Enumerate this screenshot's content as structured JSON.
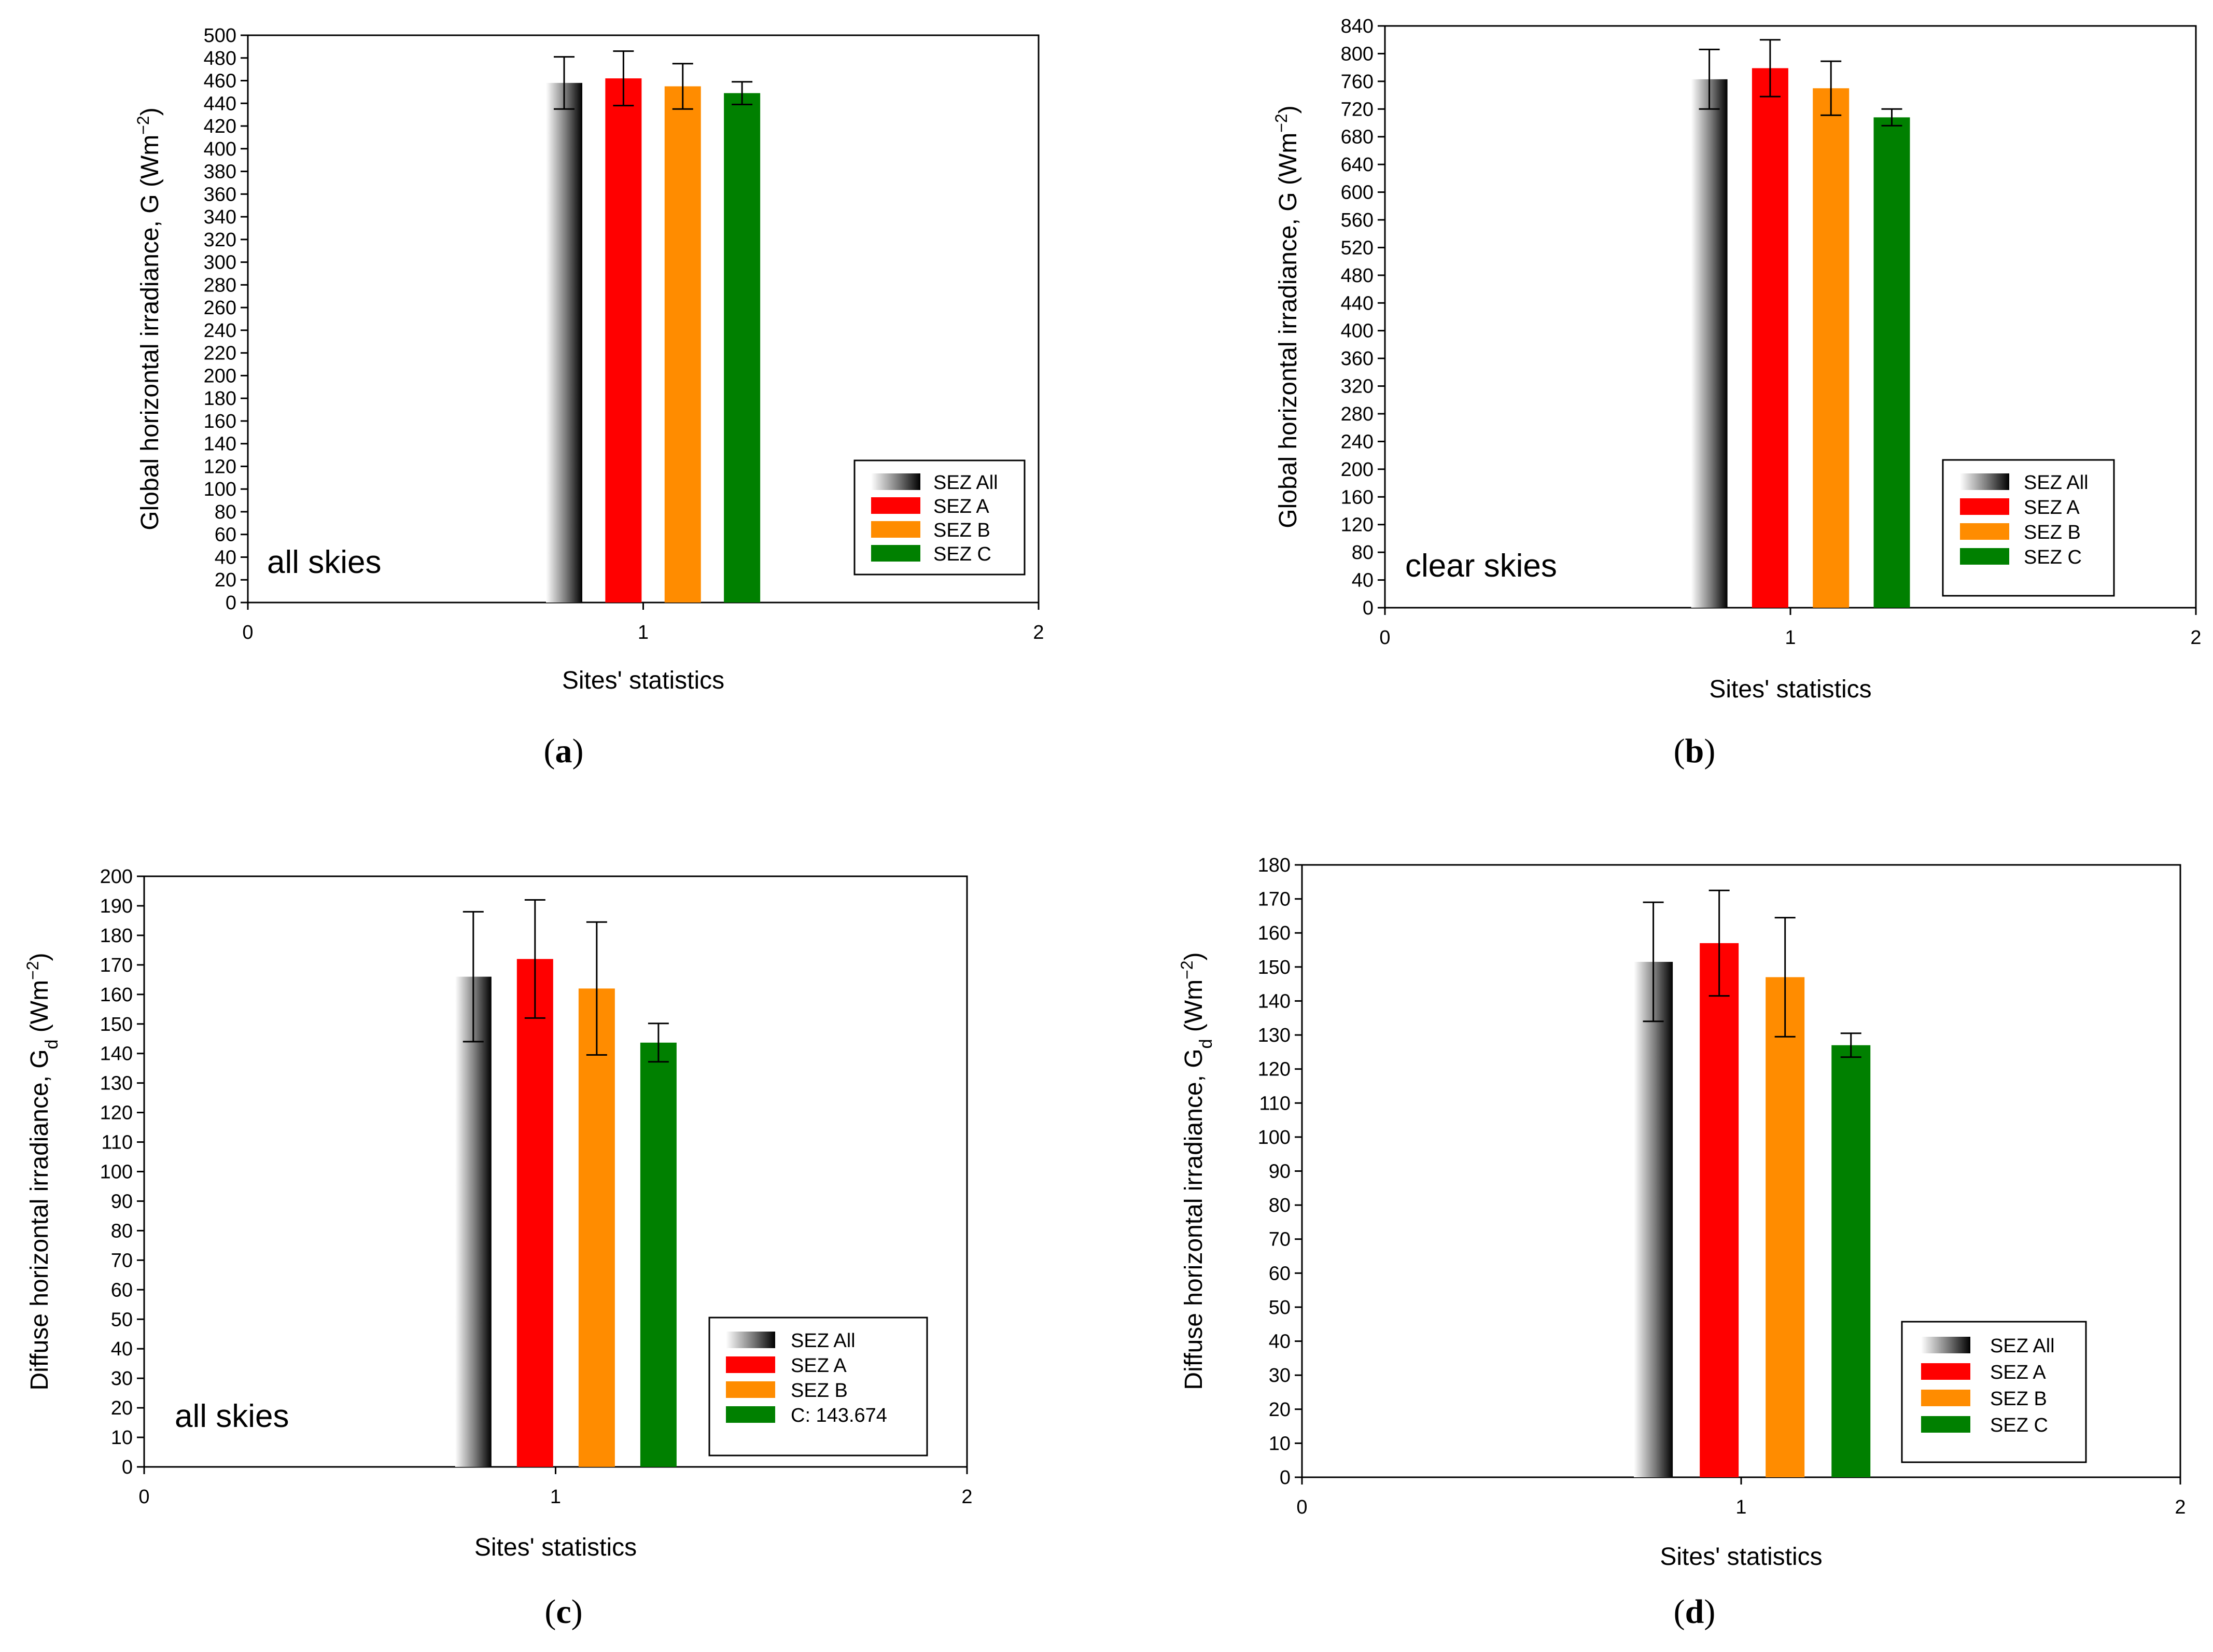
{
  "chart_data": [
    {
      "panel": "a",
      "type": "bar",
      "caption_letter": "a",
      "annotation": "all skies",
      "ylabel_main": "Global horizontal irradiance, G (Wm",
      "ylabel_sup": "−2",
      "ylabel_close": ")",
      "xlabel": "Sites' statistics",
      "ylim": [
        0,
        500
      ],
      "ytick_step": 20,
      "xlim": [
        0,
        2
      ],
      "xticks": [
        0,
        1,
        2
      ],
      "series": [
        {
          "name": "SEZ All",
          "x": 0.8,
          "value": 458,
          "err": 23,
          "color": "gradient"
        },
        {
          "name": "SEZ A",
          "x": 0.95,
          "value": 462,
          "err": 24,
          "color": "#ff0000"
        },
        {
          "name": "SEZ B",
          "x": 1.1,
          "value": 455,
          "err": 20,
          "color": "#ff8c00"
        },
        {
          "name": "SEZ C",
          "x": 1.25,
          "value": 449,
          "err": 10,
          "color": "#008000"
        }
      ]
    },
    {
      "panel": "b",
      "type": "bar",
      "caption_letter": "b",
      "annotation": "clear skies",
      "ylabel_main": "Global horizontal irradiance, G (Wm",
      "ylabel_sup": "−2",
      "ylabel_close": ")",
      "xlabel": "Sites' statistics",
      "ylim": [
        0,
        840
      ],
      "ytick_step": 40,
      "xlim": [
        0,
        2
      ],
      "xticks": [
        0,
        1,
        2
      ],
      "series": [
        {
          "name": "SEZ All",
          "x": 0.8,
          "value": 763,
          "err": 43,
          "color": "gradient"
        },
        {
          "name": "SEZ A",
          "x": 0.95,
          "value": 779,
          "err": 41,
          "color": "#ff0000"
        },
        {
          "name": "SEZ B",
          "x": 1.1,
          "value": 750,
          "err": 39,
          "color": "#ff8c00"
        },
        {
          "name": "SEZ C",
          "x": 1.25,
          "value": 708,
          "err": 12,
          "color": "#008000"
        }
      ]
    },
    {
      "panel": "c",
      "type": "bar",
      "caption_letter": "c",
      "annotation": "all skies",
      "ylabel_main": "Diffuse horizontal irradiance, G",
      "ylabel_sub": "d",
      "ylabel_unit": " (Wm",
      "ylabel_sup": "−2",
      "ylabel_close": ")",
      "xlabel": "Sites' statistics",
      "ylim": [
        0,
        200
      ],
      "ytick_step": 10,
      "xlim": [
        0,
        2
      ],
      "xticks": [
        0,
        1,
        2
      ],
      "series": [
        {
          "name": "SEZ All",
          "x": 0.8,
          "value": 166,
          "err": 22,
          "color": "gradient"
        },
        {
          "name": "SEZ A",
          "x": 0.95,
          "value": 172,
          "err": 20,
          "color": "#ff0000"
        },
        {
          "name": "SEZ B",
          "x": 1.1,
          "value": 162,
          "err": 22.5,
          "color": "#ff8c00"
        },
        {
          "name": "C: 143.674",
          "x": 1.25,
          "value": 143.674,
          "err": 6.5,
          "color": "#008000"
        }
      ]
    },
    {
      "panel": "d",
      "type": "bar",
      "caption_letter": "d",
      "annotation": "",
      "ylabel_main": "Diffuse horizontal irradiance, G",
      "ylabel_sub": "d",
      "ylabel_unit": " (Wm",
      "ylabel_sup": "−2",
      "ylabel_close": ")",
      "xlabel": "Sites' statistics",
      "ylim": [
        0,
        180
      ],
      "ytick_step": 10,
      "xlim": [
        0,
        2
      ],
      "xticks": [
        0,
        1,
        2
      ],
      "series": [
        {
          "name": "SEZ All",
          "x": 0.8,
          "value": 151.5,
          "err": 17.5,
          "color": "gradient"
        },
        {
          "name": "SEZ A",
          "x": 0.95,
          "value": 157,
          "err": 15.5,
          "color": "#ff0000"
        },
        {
          "name": "SEZ B",
          "x": 1.1,
          "value": 147,
          "err": 17.5,
          "color": "#ff8c00"
        },
        {
          "name": "SEZ C",
          "x": 1.25,
          "value": 127,
          "err": 3.5,
          "color": "#008000"
        }
      ]
    }
  ]
}
